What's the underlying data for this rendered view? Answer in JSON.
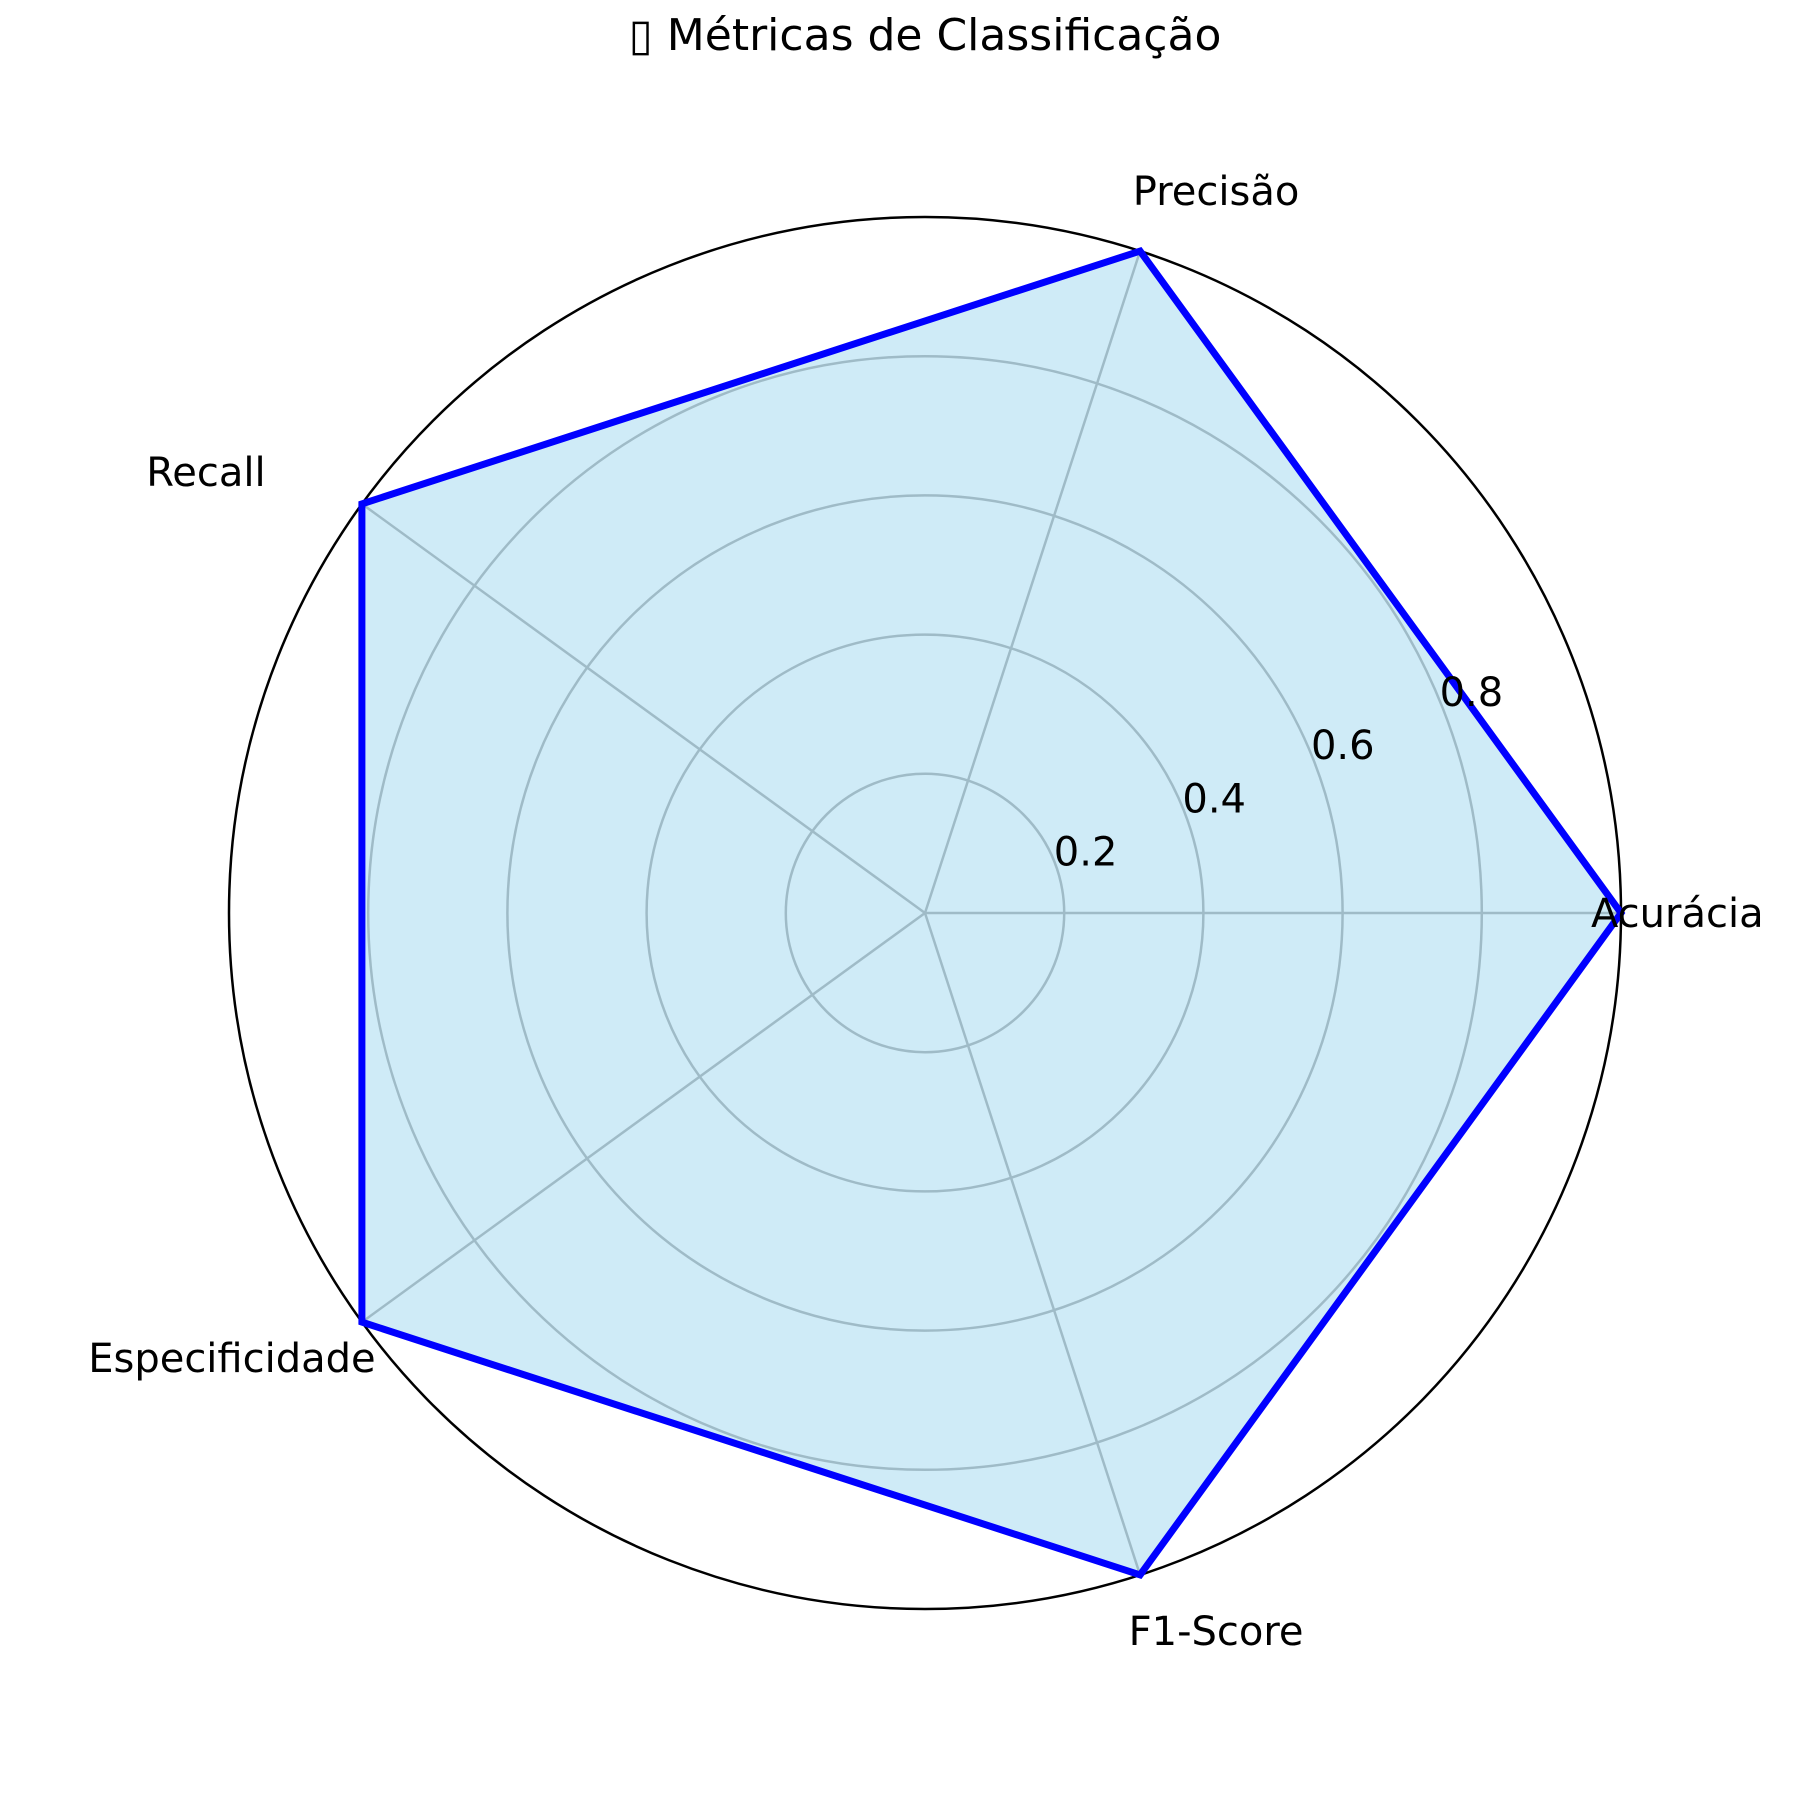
{
  "chart_data": {
    "type": "radar",
    "title": "▯ Métricas de Classificação",
    "categories": [
      "Acurácia",
      "Precisão",
      "Recall",
      "Especificidade",
      "F1-Score"
    ],
    "series": [
      {
        "values": [
          1.0,
          1.0,
          1.0,
          1.0,
          1.0
        ]
      }
    ],
    "radial_ticks": [
      0.2,
      0.4,
      0.6,
      0.8
    ],
    "rlim": [
      0,
      1.0
    ],
    "grid": true,
    "colors": {
      "line": "#0000ff",
      "fill": "#87ceeb",
      "grid": "#b0b0b0",
      "outer": "#000000"
    }
  }
}
